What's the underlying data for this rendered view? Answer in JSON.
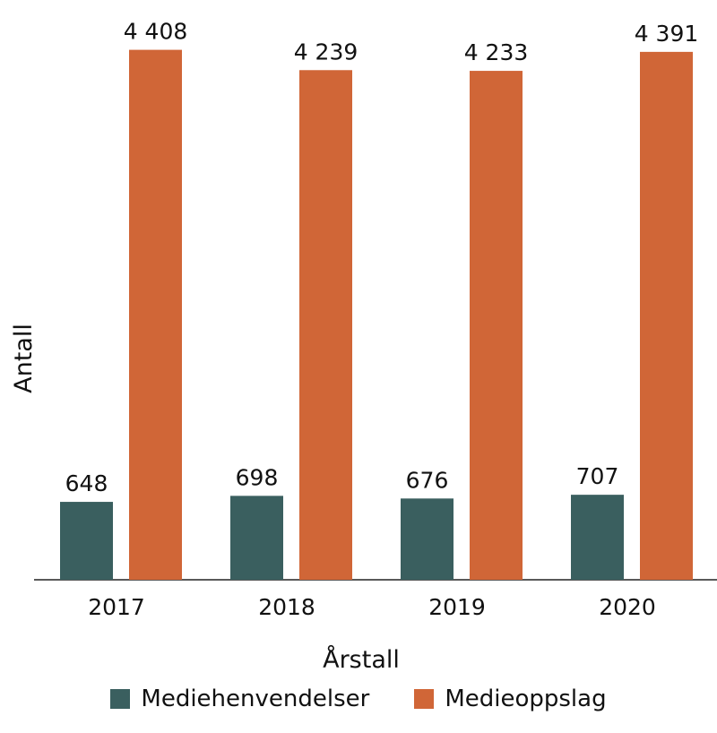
{
  "chart_data": {
    "type": "bar",
    "title": "",
    "xlabel": "Årstall",
    "ylabel": "Antall",
    "categories": [
      "2017",
      "2018",
      "2019",
      "2020"
    ],
    "series": [
      {
        "name": "Mediehenvendelser",
        "values": [
          648,
          698,
          676,
          707
        ],
        "labels": [
          "648",
          "698",
          "676",
          "707"
        ],
        "color": "#3a5f5f"
      },
      {
        "name": "Medieoppslag",
        "values": [
          4408,
          4239,
          4233,
          4391
        ],
        "labels": [
          "4 408",
          "4 239",
          "4 233",
          "4 391"
        ],
        "color": "#d06637"
      }
    ],
    "ylim": [
      0,
      4800
    ],
    "grid": false,
    "legend_position": "bottom"
  }
}
